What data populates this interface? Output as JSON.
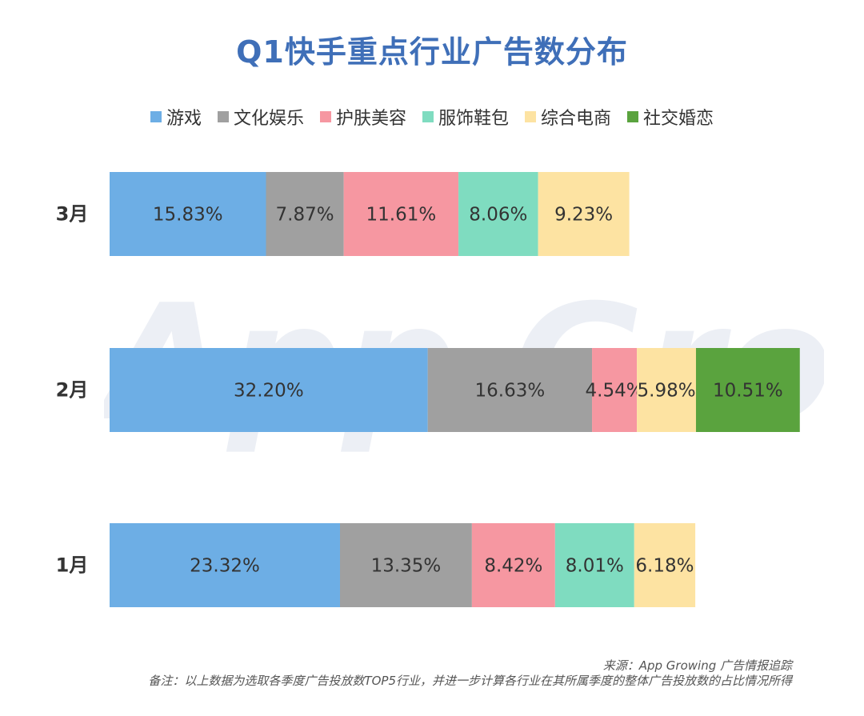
{
  "title": "Q1快手重点行业广告数分布",
  "watermark": "App Growing",
  "legend": [
    {
      "label": "游戏",
      "color": "#6daee5"
    },
    {
      "label": "文化娱乐",
      "color": "#a0a0a0"
    },
    {
      "label": "护肤美容",
      "color": "#f697a1"
    },
    {
      "label": "服饰鞋包",
      "color": "#7fdcc0"
    },
    {
      "label": "综合电商",
      "color": "#fde3a2"
    },
    {
      "label": "社交婚恋",
      "color": "#5aa33e"
    }
  ],
  "chart_data": {
    "type": "bar",
    "orientation": "horizontal",
    "stacked": true,
    "title": "Q1快手重点行业广告数分布",
    "categories": [
      "3月",
      "2月",
      "1月"
    ],
    "series": [
      {
        "name": "游戏",
        "values": [
          15.83,
          32.2,
          23.32
        ],
        "labels": [
          "15.83%",
          "32.20%",
          "23.32%"
        ]
      },
      {
        "name": "文化娱乐",
        "values": [
          7.87,
          16.63,
          13.35
        ],
        "labels": [
          "7.87%",
          "16.63%",
          "13.35%"
        ]
      },
      {
        "name": "护肤美容",
        "values": [
          11.61,
          4.54,
          8.42
        ],
        "labels": [
          "11.61%",
          "4.54%",
          "8.42%"
        ]
      },
      {
        "name": "服饰鞋包",
        "values": [
          8.06,
          null,
          8.01
        ],
        "labels": [
          "8.06%",
          null,
          "8.01%"
        ]
      },
      {
        "name": "综合电商",
        "values": [
          9.23,
          5.98,
          6.18
        ],
        "labels": [
          "9.23%",
          "5.98%",
          "6.18%"
        ]
      },
      {
        "name": "社交婚恋",
        "values": [
          null,
          10.51,
          null
        ],
        "labels": [
          null,
          "10.51%",
          null
        ]
      }
    ],
    "xlabel": "",
    "ylabel": "",
    "legend": "top-center"
  },
  "footer": {
    "source": "来源：App Growing 广告情报追踪",
    "note": "备注：以上数据为选取各季度广告投放数TOP5行业，并进一步计算各行业在其所属季度的整体广告投放数的占比情况所得"
  }
}
